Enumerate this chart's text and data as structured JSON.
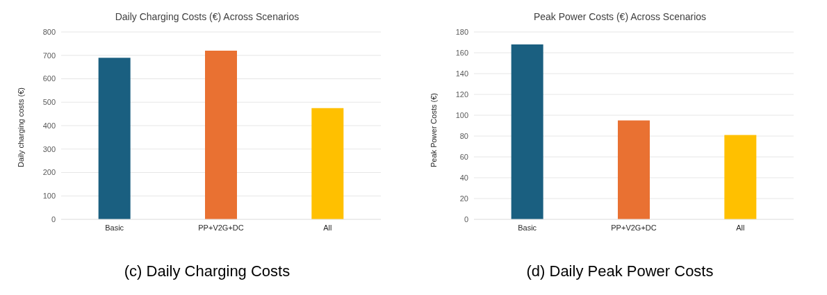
{
  "chart_data": [
    {
      "type": "bar",
      "title": "Daily Charging Costs (€) Across Scenarios",
      "ylabel": "Daily charging costs (€)",
      "categories": [
        "Basic",
        "PP+V2G+DC",
        "All"
      ],
      "values": [
        690,
        720,
        475
      ],
      "colors": [
        "#1a5f80",
        "#e97132",
        "#ffc000"
      ],
      "ylim": [
        0,
        800
      ],
      "yticks": [
        0,
        100,
        200,
        300,
        400,
        500,
        600,
        700,
        800
      ],
      "grid": "y",
      "annotations": [
        "(c) Daily Charging Costs"
      ]
    },
    {
      "type": "bar",
      "title": "Peak Power Costs (€) Across Scenarios",
      "ylabel": "Peak Power Costs (€)",
      "categories": [
        "Basic",
        "PP+V2G+DC",
        "All"
      ],
      "values": [
        168,
        95,
        81
      ],
      "colors": [
        "#1a5f80",
        "#e97132",
        "#ffc000"
      ],
      "ylim": [
        0,
        180
      ],
      "yticks": [
        0,
        20,
        40,
        60,
        80,
        100,
        120,
        140,
        160,
        180
      ],
      "grid": "y",
      "annotations": [
        "(d) Daily Peak Power Costs"
      ]
    }
  ]
}
